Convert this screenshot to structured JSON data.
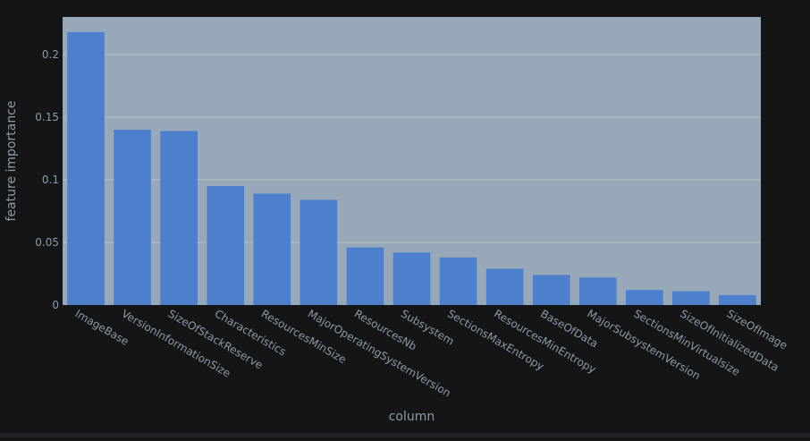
{
  "chart_data": {
    "type": "bar",
    "xlabel": "column",
    "ylabel": "feature importance",
    "ylim": [
      0,
      0.23
    ],
    "yticks": [
      0,
      0.05,
      0.1,
      0.15,
      0.2
    ],
    "ytick_labels": [
      "0",
      "0.05",
      "0.1",
      "0.15",
      "0.2"
    ],
    "grid": true,
    "categories": [
      "ImageBase",
      "VersionInformationSize",
      "SizeOfStackReserve",
      "Characteristics",
      "ResourcesMinSize",
      "MajorOperatingSystemVersion",
      "ResourcesNb",
      "Subsystem",
      "SectionsMaxEntropy",
      "ResourcesMinEntropy",
      "BaseOfData",
      "MajorSubsystemVersion",
      "SectionsMinVirtualsize",
      "SizeOfInitializedData",
      "SizeOfImage"
    ],
    "values": [
      0.218,
      0.14,
      0.139,
      0.095,
      0.089,
      0.084,
      0.046,
      0.042,
      0.038,
      0.029,
      0.024,
      0.022,
      0.012,
      0.011,
      0.008
    ]
  },
  "colors": {
    "plot_bg": "#99a8b8",
    "bar": "#4d80cc",
    "grid": "#b4c0cc",
    "page_bg": "#131517"
  }
}
